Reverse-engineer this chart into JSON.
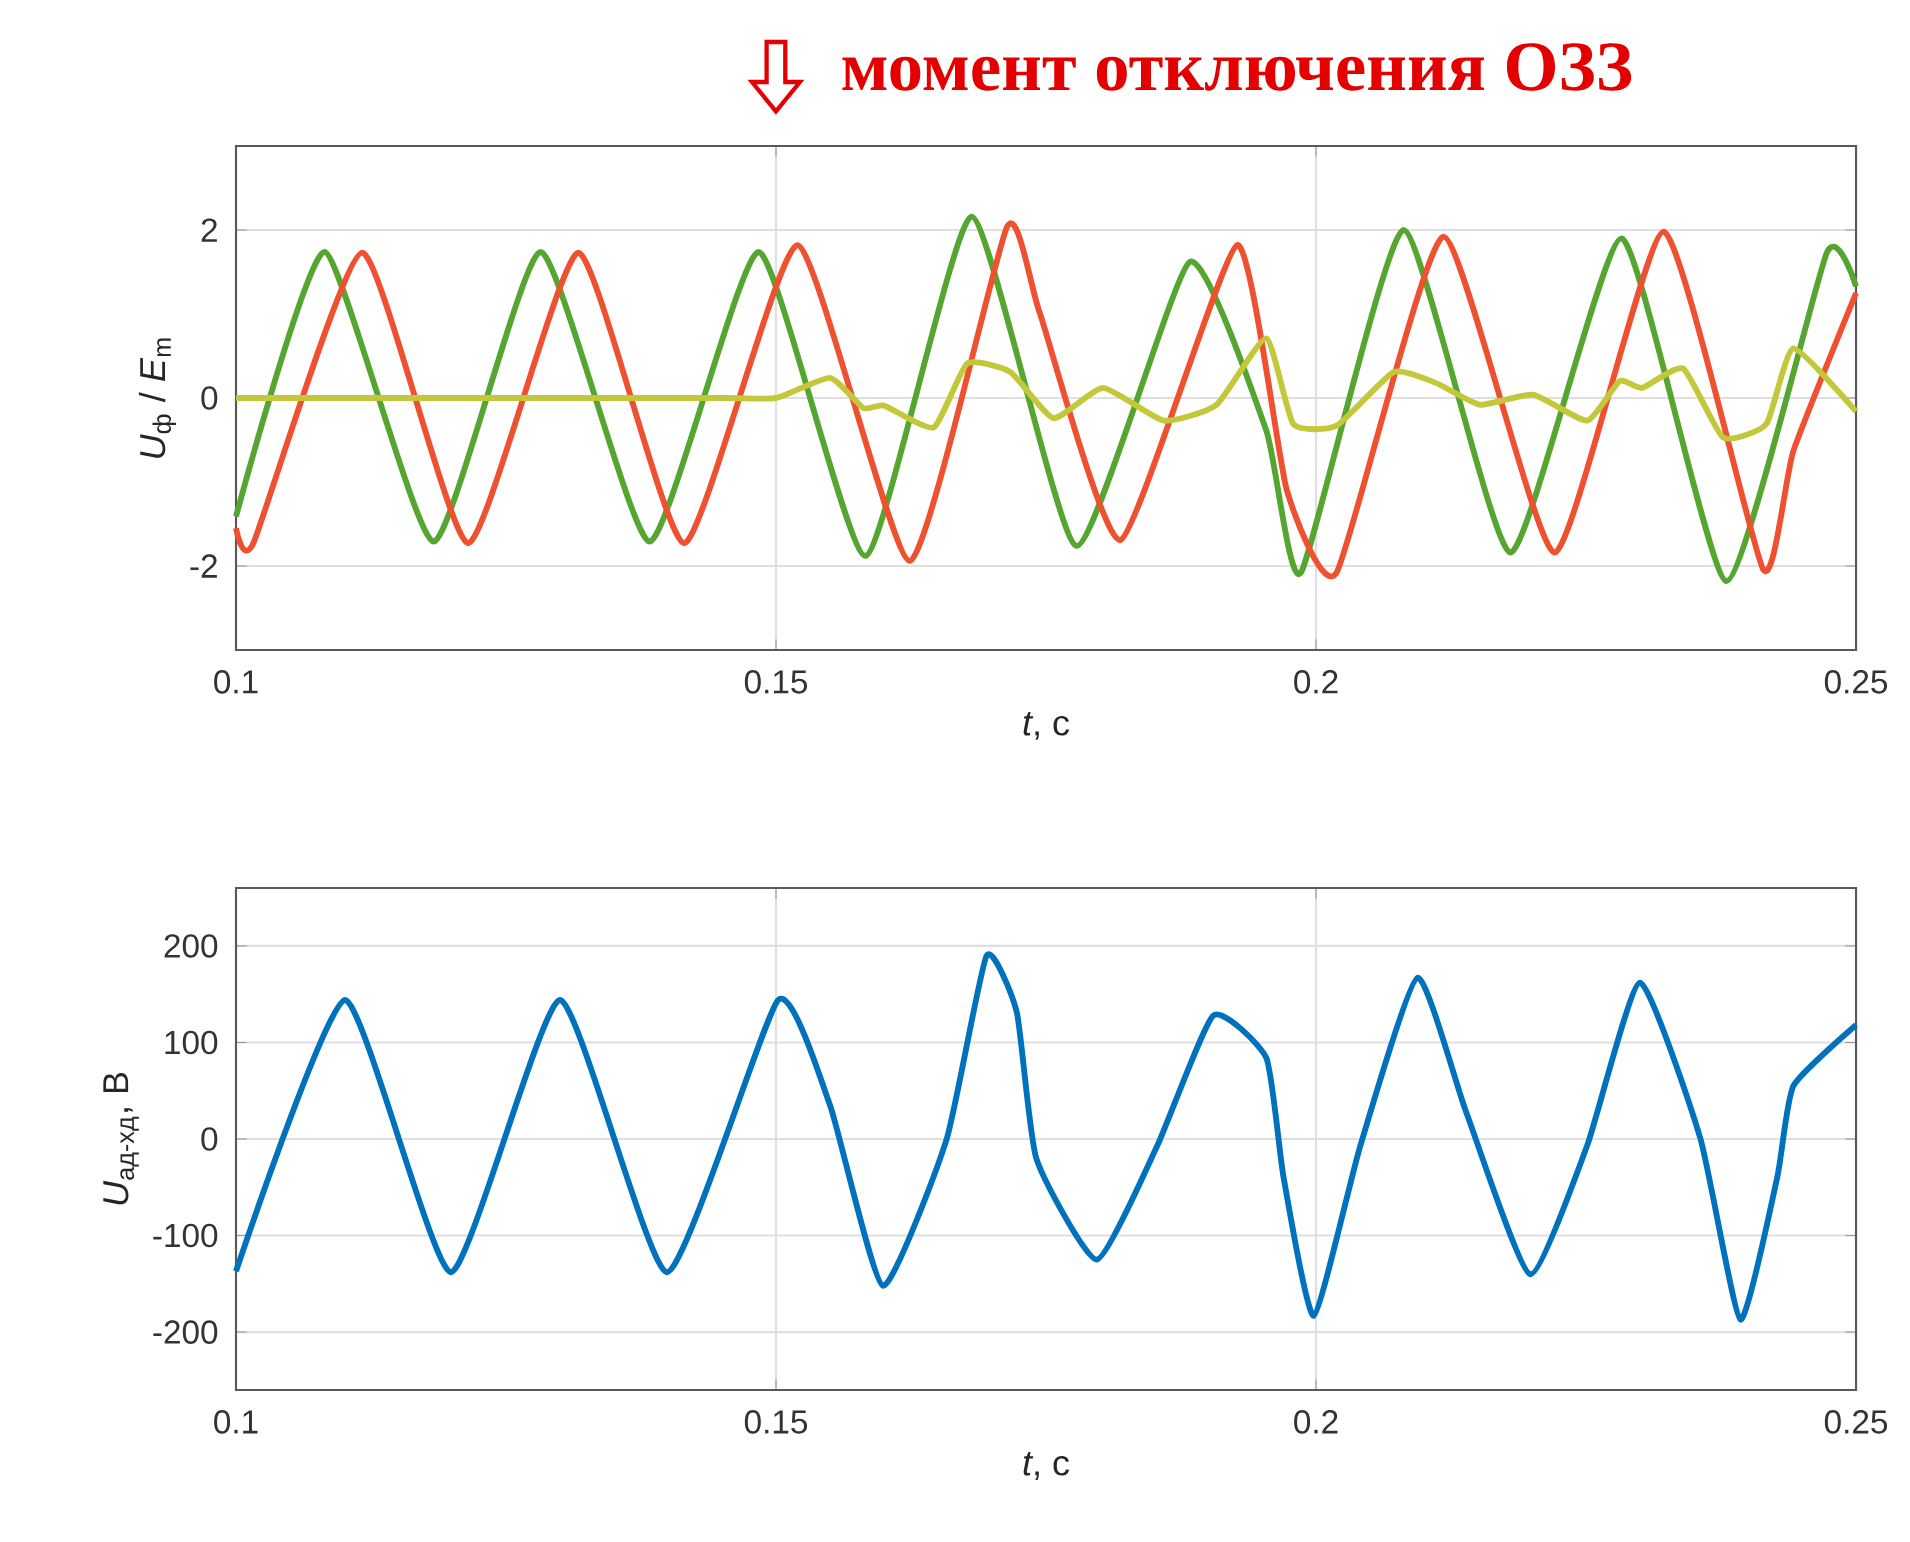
{
  "chart_data": [
    {
      "type": "line",
      "xlabel": "*t*, с",
      "ylabel": "*U*$_{ф}$ / *E*$_{m}$",
      "xlim": [
        0.1,
        0.25
      ],
      "ylim": [
        -3,
        3
      ],
      "xticks": [
        0.1,
        0.15,
        0.2,
        0.25
      ],
      "yticks": [
        -2,
        0,
        2
      ],
      "grid": true,
      "annotations": [
        "момент отключения ОЗЗ"
      ],
      "series": [
        {
          "color": "#55a630",
          "x": [
            0.1,
            0.1082,
            0.1183,
            0.1282,
            0.1383,
            0.1484,
            0.1583,
            0.1681,
            0.1778,
            0.1883,
            0.1954,
            0.1986,
            0.2081,
            0.218,
            0.2283,
            0.238,
            0.2473,
            0.25
          ],
          "values": [
            -1.41,
            1.74,
            -1.71,
            1.74,
            -1.71,
            1.74,
            -1.88,
            2.16,
            -1.76,
            1.62,
            -0.39,
            -2.08,
            2.0,
            -1.84,
            1.9,
            -2.18,
            1.73,
            1.33
          ]
        },
        {
          "color": "#ee5030",
          "x": [
            0.1,
            0.1016,
            0.1117,
            0.1215,
            0.1317,
            0.1415,
            0.152,
            0.1624,
            0.1714,
            0.1744,
            0.1819,
            0.1927,
            0.1973,
            0.2019,
            0.2118,
            0.2221,
            0.2322,
            0.2414,
            0.2442,
            0.25
          ],
          "values": [
            -1.55,
            -1.73,
            1.73,
            -1.73,
            1.73,
            -1.73,
            1.82,
            -1.94,
            2.04,
            1.02,
            -1.69,
            1.82,
            -1.1,
            -2.08,
            1.92,
            -1.84,
            1.98,
            -2.04,
            -0.63,
            1.25
          ]
        },
        {
          "color": "#c3c83a",
          "x": [
            0.1,
            0.125,
            0.145,
            0.15,
            0.155,
            0.1581,
            0.16,
            0.1646,
            0.1677,
            0.1717,
            0.1757,
            0.1803,
            0.1859,
            0.1908,
            0.1954,
            0.1979,
            0.2019,
            0.2072,
            0.2111,
            0.2152,
            0.2201,
            0.2251,
            0.2281,
            0.2302,
            0.234,
            0.2377,
            0.2417,
            0.2442,
            0.25
          ],
          "values": [
            0,
            0,
            0,
            0,
            0.24,
            -0.12,
            -0.09,
            -0.35,
            0.41,
            0.31,
            -0.24,
            0.12,
            -0.27,
            -0.08,
            0.71,
            -0.31,
            -0.33,
            0.31,
            0.18,
            -0.08,
            0.04,
            -0.27,
            0.2,
            0.12,
            0.35,
            -0.47,
            -0.31,
            0.59,
            -0.16
          ]
        }
      ]
    },
    {
      "type": "line",
      "xlabel": "*t*, с",
      "ylabel": "*U*$_{ад-хд}$, В",
      "xlim": [
        0.1,
        0.25
      ],
      "ylim": [
        -260,
        260
      ],
      "xticks": [
        0.1,
        0.15,
        0.2,
        0.25
      ],
      "yticks": [
        -200,
        -100,
        0,
        100,
        200
      ],
      "grid": true,
      "series": [
        {
          "color": "#0072bd",
          "x": [
            0.1,
            0.1101,
            0.1199,
            0.13,
            0.1399,
            0.1502,
            0.155,
            0.1599,
            0.1658,
            0.1695,
            0.1723,
            0.1741,
            0.1797,
            0.1853,
            0.1905,
            0.1954,
            0.197,
            0.1998,
            0.2041,
            0.2094,
            0.2139,
            0.2198,
            0.2251,
            0.23,
            0.2356,
            0.2393,
            0.2427,
            0.2442,
            0.25
          ],
          "values": [
            -137,
            144,
            -138,
            144,
            -138,
            144,
            35,
            -152,
            0,
            190,
            131,
            -20,
            -125,
            -7,
            128,
            84,
            -40,
            -183,
            -7,
            167,
            28,
            -140,
            -7,
            162,
            0,
            -187,
            -40,
            55,
            118
          ]
        }
      ]
    }
  ]
}
